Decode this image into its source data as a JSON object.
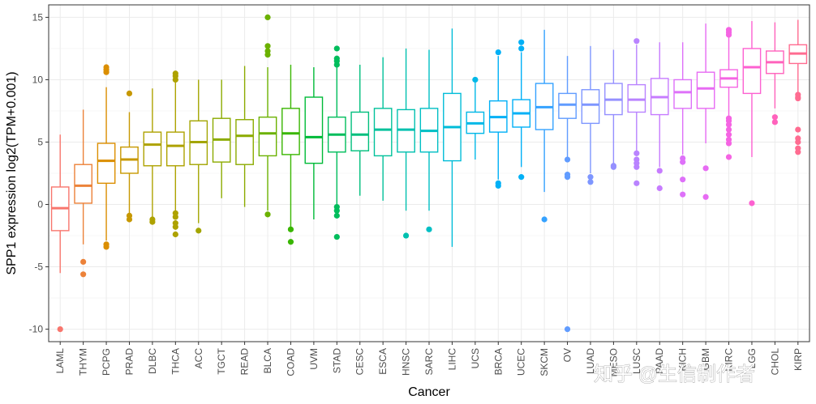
{
  "chart_data": {
    "type": "boxplot",
    "title": "",
    "xlabel": "Cancer",
    "ylabel": "SPP1 expression log2(TPM+0.001)",
    "ylim": [
      -11,
      16
    ],
    "yticks": [
      -10,
      -5,
      0,
      5,
      10,
      15
    ],
    "grid": true,
    "legend": "none",
    "categories": [
      "LAML",
      "THYM",
      "PCPG",
      "PRAD",
      "DLBC",
      "THCA",
      "ACC",
      "TGCT",
      "READ",
      "BLCA",
      "COAD",
      "UVM",
      "STAD",
      "CESC",
      "ESCA",
      "HNSC",
      "SARC",
      "LIHC",
      "UCS",
      "BRCA",
      "UCEC",
      "SKCM",
      "OV",
      "LUAD",
      "MESO",
      "LUSC",
      "PAAD",
      "KICH",
      "GBM",
      "KIRC",
      "LGG",
      "CHOL",
      "KIRP"
    ],
    "series": [
      {
        "name": "LAML",
        "color": "#F8766D",
        "min": -5.5,
        "q1": -2.1,
        "median": -0.3,
        "q3": 1.4,
        "max": 5.6,
        "outliers": [
          -10.0
        ]
      },
      {
        "name": "THYM",
        "color": "#EC8239",
        "min": -3.2,
        "q1": 0.1,
        "median": 1.5,
        "q3": 3.2,
        "max": 7.6,
        "outliers": [
          -4.6,
          -5.6
        ]
      },
      {
        "name": "PCPG",
        "color": "#DB8E00",
        "min": -2.9,
        "q1": 1.7,
        "median": 3.5,
        "q3": 4.9,
        "max": 9.4,
        "outliers": [
          11.0,
          10.8,
          10.6,
          -3.2,
          -3.4
        ]
      },
      {
        "name": "PRAD",
        "color": "#C79800",
        "min": -0.8,
        "q1": 2.5,
        "median": 3.6,
        "q3": 4.6,
        "max": 7.4,
        "outliers": [
          8.9,
          -0.9,
          -1.2
        ]
      },
      {
        "name": "DLBC",
        "color": "#AEA200",
        "min": -1.0,
        "q1": 3.1,
        "median": 4.8,
        "q3": 5.8,
        "max": 9.3,
        "outliers": [
          -1.2,
          -1.4
        ]
      },
      {
        "name": "THCA",
        "color": "#AEA200",
        "min": -0.5,
        "q1": 3.1,
        "median": 4.7,
        "q3": 5.8,
        "max": 9.8,
        "outliers": [
          10.5,
          10.3,
          10.0,
          -0.7,
          -1.0,
          -1.5,
          -1.8,
          -2.4
        ]
      },
      {
        "name": "ACC",
        "color": "#A3A500",
        "min": -1.5,
        "q1": 3.2,
        "median": 5.0,
        "q3": 6.7,
        "max": 10.0,
        "outliers": [
          -2.1
        ]
      },
      {
        "name": "TGCT",
        "color": "#8CAB00",
        "min": 0.5,
        "q1": 3.4,
        "median": 5.2,
        "q3": 6.9,
        "max": 10.0,
        "outliers": []
      },
      {
        "name": "READ",
        "color": "#8CAB00",
        "min": -0.2,
        "q1": 3.2,
        "median": 5.5,
        "q3": 6.8,
        "max": 11.1,
        "outliers": []
      },
      {
        "name": "BLCA",
        "color": "#6BB100",
        "min": -0.5,
        "q1": 3.9,
        "median": 5.7,
        "q3": 7.0,
        "max": 11.0,
        "outliers": [
          15.0,
          12.7,
          12.3,
          12.0,
          -0.8
        ]
      },
      {
        "name": "COAD",
        "color": "#39B600",
        "min": -1.8,
        "q1": 4.0,
        "median": 5.7,
        "q3": 7.7,
        "max": 11.2,
        "outliers": [
          -2.0,
          -3.0
        ]
      },
      {
        "name": "UVM",
        "color": "#00BA38",
        "min": -1.2,
        "q1": 3.3,
        "median": 5.4,
        "q3": 8.6,
        "max": 11.0,
        "outliers": []
      },
      {
        "name": "STAD",
        "color": "#00BD5C",
        "min": -0.2,
        "q1": 4.2,
        "median": 5.6,
        "q3": 7.0,
        "max": 11.2,
        "outliers": [
          12.5,
          11.7,
          11.5,
          11.2,
          -0.2,
          -0.5,
          -0.9,
          -2.6
        ]
      },
      {
        "name": "CESC",
        "color": "#00BF7D",
        "min": 0.7,
        "q1": 4.3,
        "median": 5.6,
        "q3": 7.4,
        "max": 11.2,
        "outliers": []
      },
      {
        "name": "ESCA",
        "color": "#00C19A",
        "min": 0.3,
        "q1": 3.9,
        "median": 6.0,
        "q3": 7.7,
        "max": 11.8,
        "outliers": []
      },
      {
        "name": "HNSC",
        "color": "#00C0AF",
        "min": -0.5,
        "q1": 4.2,
        "median": 6.0,
        "q3": 7.6,
        "max": 12.5,
        "outliers": [
          -2.5
        ]
      },
      {
        "name": "SARC",
        "color": "#00BFC4",
        "min": -0.5,
        "q1": 4.2,
        "median": 5.9,
        "q3": 7.7,
        "max": 12.4,
        "outliers": [
          -2.0
        ]
      },
      {
        "name": "LIHC",
        "color": "#00BCD8",
        "min": -3.4,
        "q1": 3.5,
        "median": 6.2,
        "q3": 8.9,
        "max": 14.1,
        "outliers": []
      },
      {
        "name": "UCS",
        "color": "#00B8E7",
        "min": 3.6,
        "q1": 5.7,
        "median": 6.5,
        "q3": 7.4,
        "max": 10.1,
        "outliers": [
          10.0
        ]
      },
      {
        "name": "BRCA",
        "color": "#00B0F6",
        "min": 2.0,
        "q1": 5.8,
        "median": 7.0,
        "q3": 8.3,
        "max": 11.9,
        "outliers": [
          12.2,
          1.7,
          1.5
        ]
      },
      {
        "name": "UCEC",
        "color": "#00B0F6",
        "min": 3.0,
        "q1": 6.2,
        "median": 7.3,
        "q3": 8.4,
        "max": 12.2,
        "outliers": [
          13.0,
          12.5,
          2.2
        ]
      },
      {
        "name": "SKCM",
        "color": "#35A2FF",
        "min": 1.0,
        "q1": 6.0,
        "median": 7.8,
        "q3": 9.7,
        "max": 14.0,
        "outliers": [
          -1.2
        ]
      },
      {
        "name": "OV",
        "color": "#619CFF",
        "min": 3.5,
        "q1": 6.9,
        "median": 8.0,
        "q3": 8.9,
        "max": 11.9,
        "outliers": [
          3.6,
          2.4,
          2.2,
          -10.0
        ]
      },
      {
        "name": "LUAD",
        "color": "#7E96FF",
        "min": 2.5,
        "q1": 6.5,
        "median": 8.0,
        "q3": 9.2,
        "max": 12.7,
        "outliers": [
          2.2,
          1.8
        ]
      },
      {
        "name": "MESO",
        "color": "#9590FF",
        "min": 3.3,
        "q1": 7.2,
        "median": 8.4,
        "q3": 9.7,
        "max": 12.4,
        "outliers": [
          3.1,
          3.0
        ]
      },
      {
        "name": "LUSC",
        "color": "#B983FF",
        "min": 4.3,
        "q1": 7.4,
        "median": 8.4,
        "q3": 9.6,
        "max": 12.8,
        "outliers": [
          13.1,
          4.1,
          3.6,
          3.3,
          3.0,
          1.7
        ]
      },
      {
        "name": "PAAD",
        "color": "#C77CFF",
        "min": 3.0,
        "q1": 7.2,
        "median": 8.6,
        "q3": 10.1,
        "max": 13.0,
        "outliers": [
          2.7,
          1.3
        ]
      },
      {
        "name": "KICH",
        "color": "#DE71F9",
        "min": 4.0,
        "q1": 7.7,
        "median": 9.0,
        "q3": 10.0,
        "max": 13.0,
        "outliers": [
          3.7,
          3.4,
          2.0,
          0.8
        ]
      },
      {
        "name": "GBM",
        "color": "#E76BF3",
        "min": 4.9,
        "q1": 7.7,
        "median": 9.3,
        "q3": 10.6,
        "max": 14.5,
        "outliers": [
          2.9,
          0.6
        ]
      },
      {
        "name": "KIRC",
        "color": "#F564E3",
        "min": 7.0,
        "q1": 9.4,
        "median": 10.1,
        "q3": 10.8,
        "max": 13.5,
        "outliers": [
          14.0,
          13.8,
          13.6,
          6.9,
          6.7,
          6.4,
          6.0,
          5.6,
          5.2,
          4.9,
          3.8
        ]
      },
      {
        "name": "LGG",
        "color": "#FD61D1",
        "min": 3.8,
        "q1": 8.9,
        "median": 11.0,
        "q3": 12.5,
        "max": 14.7,
        "outliers": [
          0.1
        ]
      },
      {
        "name": "CHOL",
        "color": "#FF62BC",
        "min": 7.7,
        "q1": 10.5,
        "median": 11.4,
        "q3": 12.3,
        "max": 14.6,
        "outliers": [
          7.0,
          6.6
        ]
      },
      {
        "name": "KIRP",
        "color": "#FF6C91",
        "min": 9.0,
        "q1": 11.3,
        "median": 12.1,
        "q3": 12.8,
        "max": 14.8,
        "outliers": [
          8.8,
          8.6,
          8.5,
          6.0,
          5.3,
          5.0,
          4.5,
          4.2
        ]
      }
    ]
  },
  "watermark": {
    "text": "知乎 @生信制作者",
    "glyphs": {
      "camera": "🍀"
    }
  }
}
